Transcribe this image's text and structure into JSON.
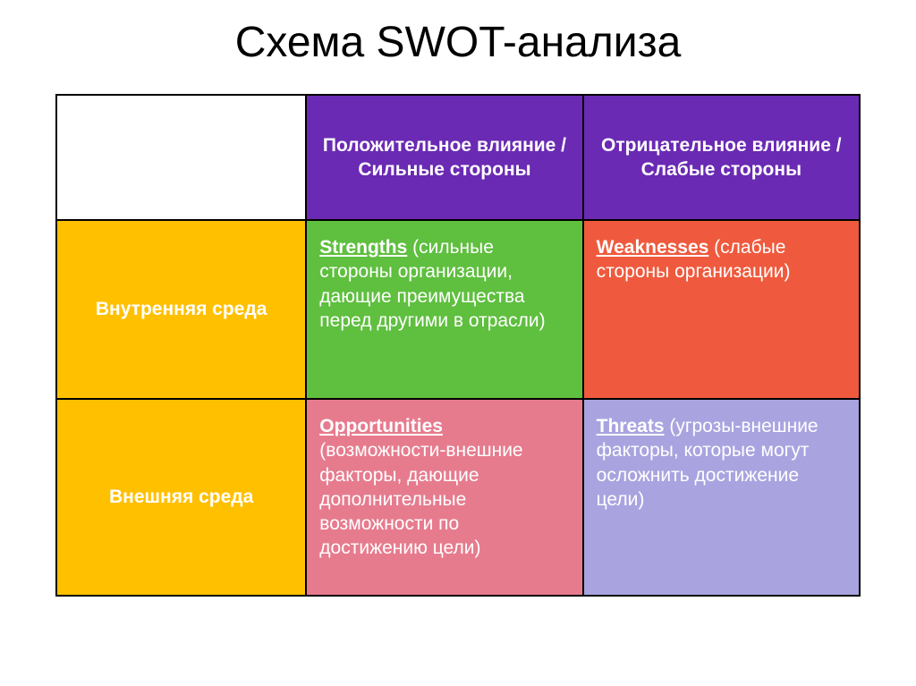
{
  "title": "Схема SWOT-анализа",
  "colors": {
    "header_purple": "#6a2ab3",
    "row_yellow": "#ffc000",
    "strengths_green": "#5fbf3f",
    "weaknesses_red": "#ef5a3e",
    "opportunities_pink": "#e77b8e",
    "threats_lavender": "#a9a4e0",
    "border": "#000000",
    "text_white": "#ffffff",
    "title_black": "#000000",
    "background": "#ffffff"
  },
  "headers": {
    "col1": "Положительное влияние / Сильные стороны",
    "col2": "Отрицательное влияние / Слабые стороны"
  },
  "rows": {
    "internal": {
      "label": "Внутренняя среда",
      "strengths": {
        "keyword": "Strengths",
        "text": " (сильные стороны организации, дающие преимущества перед другими в отрасли)"
      },
      "weaknesses": {
        "keyword": "Weaknesses",
        "text": " (слабые стороны организации)"
      }
    },
    "external": {
      "label": "Внешняя среда",
      "opportunities": {
        "keyword": "Opportunities",
        "text": " (возможности-внешние факторы, дающие дополнительные возможности по достижению цели)"
      },
      "threats": {
        "keyword": "Threats",
        "text": " (угрозы-внешние факторы, которые могут осложнить достижение цели)"
      }
    }
  },
  "row_heights": {
    "header": 140,
    "internal": 200,
    "external": 220
  },
  "fonts": {
    "title_size": 48,
    "cell_size": 21
  }
}
